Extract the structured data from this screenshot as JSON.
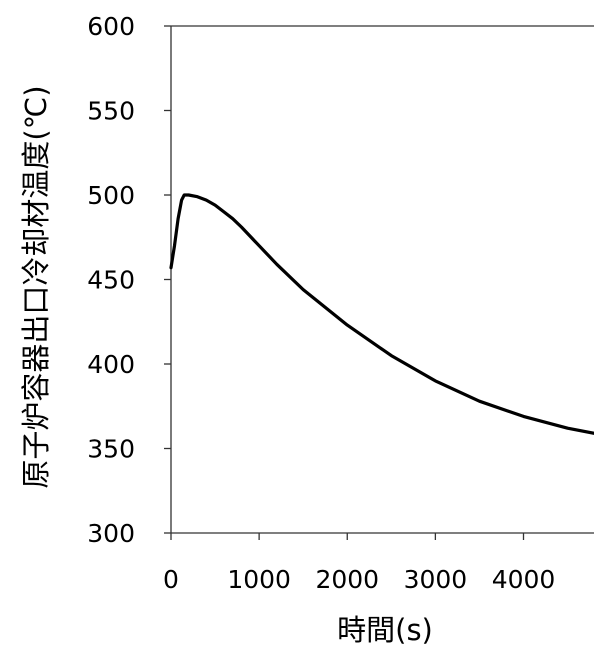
{
  "chart_data": {
    "type": "line",
    "title": "",
    "xlabel": "時間(s)",
    "ylabel": "原子炉容器出口冷却材温度(℃)",
    "xlim": [
      0,
      4800
    ],
    "ylim": [
      300,
      600
    ],
    "xticks": [
      0,
      1000,
      2000,
      3000,
      4000
    ],
    "xtick_labels": [
      "0",
      "1000",
      "2000",
      "3000",
      "4000"
    ],
    "yticks": [
      300,
      350,
      400,
      450,
      500,
      550,
      600
    ],
    "ytick_labels": [
      "300",
      "350",
      "400",
      "450",
      "500",
      "550",
      "600"
    ],
    "grid": false,
    "legend": "none",
    "series": [
      {
        "color": "#000000",
        "x": [
          0,
          40,
          80,
          120,
          150,
          200,
          300,
          400,
          500,
          600,
          700,
          800,
          1000,
          1200,
          1500,
          2000,
          2500,
          3000,
          3500,
          4000,
          4500,
          4800
        ],
        "y": [
          457,
          470,
          486,
          497,
          500,
          500,
          499,
          497,
          494,
          490,
          486,
          481,
          470,
          459,
          444,
          423,
          405,
          390,
          378,
          369,
          362,
          359
        ]
      }
    ]
  }
}
